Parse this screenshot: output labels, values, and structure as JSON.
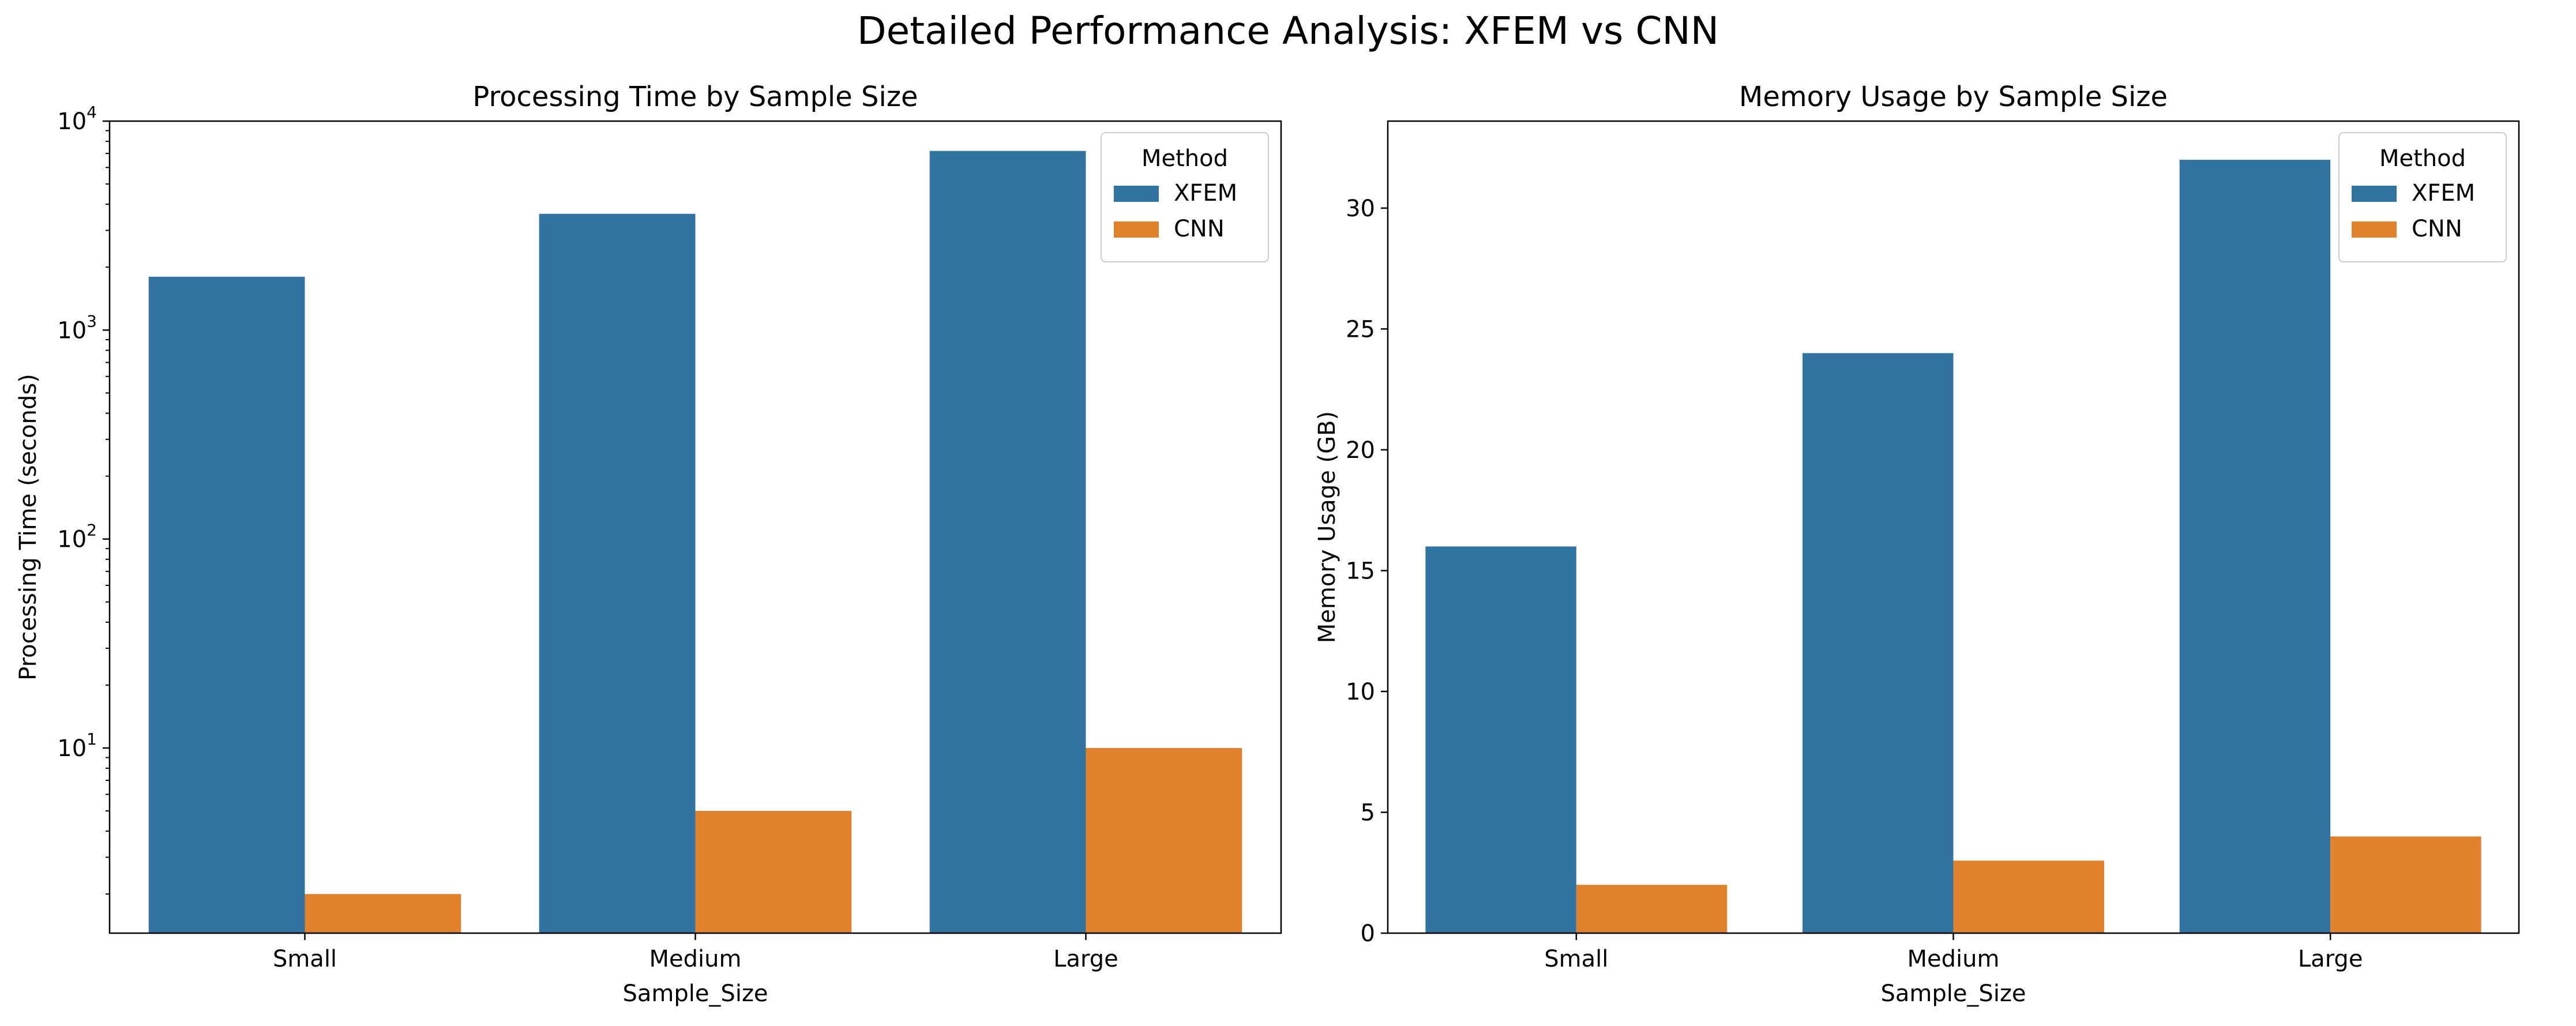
{
  "figure": {
    "suptitle": "Detailed Performance Analysis: XFEM vs CNN"
  },
  "chart_data": [
    {
      "type": "bar",
      "title": "Processing Time by Sample Size",
      "xlabel": "Sample_Size",
      "ylabel": "Processing Time (seconds)",
      "yscale": "log",
      "ylim": [
        1.3,
        10000
      ],
      "yticks": [
        {
          "base": "10",
          "exp": "1",
          "value": 10
        },
        {
          "base": "10",
          "exp": "2",
          "value": 100
        },
        {
          "base": "10",
          "exp": "3",
          "value": 1000
        },
        {
          "base": "10",
          "exp": "4",
          "value": 10000
        }
      ],
      "categories": [
        "Small",
        "Medium",
        "Large"
      ],
      "series": [
        {
          "name": "XFEM",
          "color": "#3274a1",
          "values": [
            1800,
            3600,
            7200
          ]
        },
        {
          "name": "CNN",
          "color": "#e1812c",
          "values": [
            2,
            5,
            10
          ]
        }
      ],
      "legend": {
        "title": "Method",
        "position": "top-right"
      },
      "grid": false
    },
    {
      "type": "bar",
      "title": "Memory Usage by Sample Size",
      "xlabel": "Sample_Size",
      "ylabel": "Memory Usage (GB)",
      "yscale": "linear",
      "ylim": [
        0,
        33.6
      ],
      "yticks": [
        0,
        5,
        10,
        15,
        20,
        25,
        30
      ],
      "categories": [
        "Small",
        "Medium",
        "Large"
      ],
      "series": [
        {
          "name": "XFEM",
          "color": "#3274a1",
          "values": [
            16,
            24,
            32
          ]
        },
        {
          "name": "CNN",
          "color": "#e1812c",
          "values": [
            2,
            3,
            4
          ]
        }
      ],
      "legend": {
        "title": "Method",
        "position": "top-right"
      },
      "grid": false
    }
  ]
}
